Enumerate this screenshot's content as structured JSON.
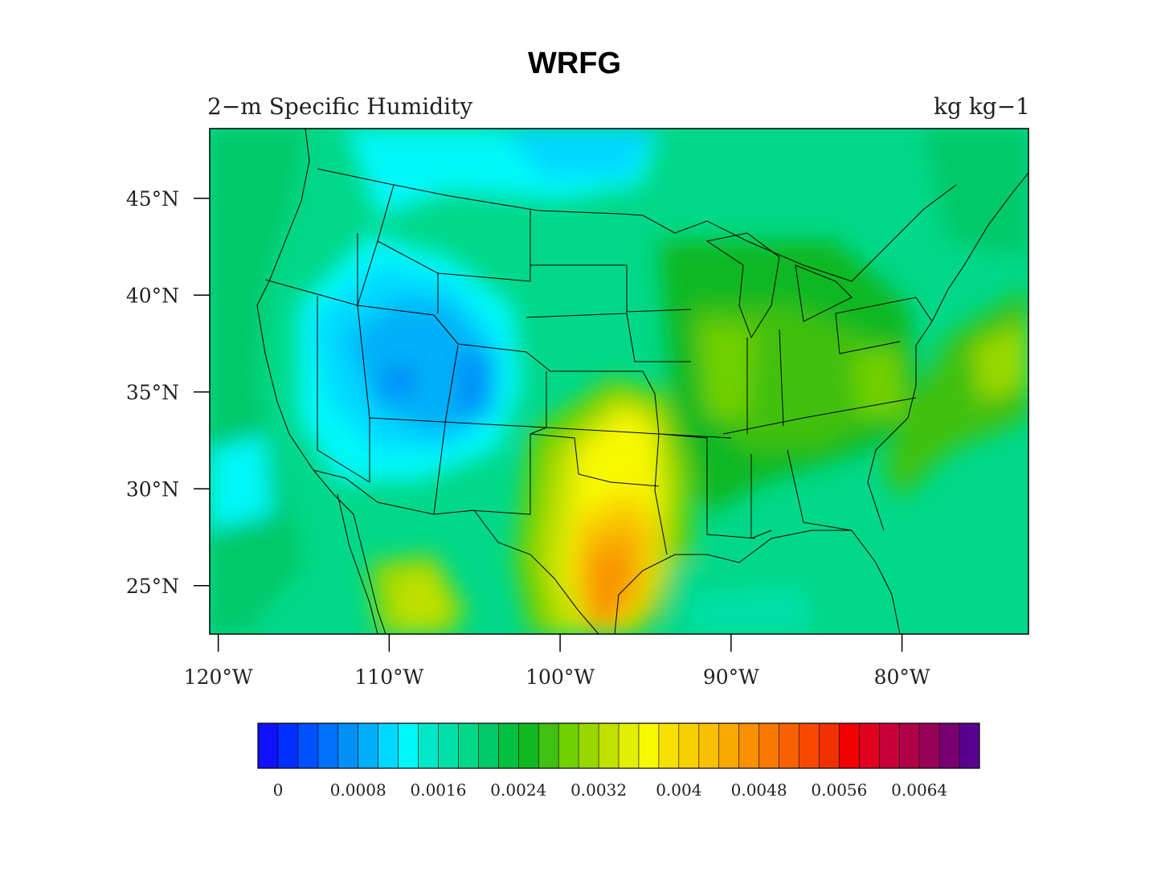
{
  "title": "WRFG",
  "subtitle_left": "2−m Specific Humidity",
  "subtitle_right": "kg kg−1",
  "map": {
    "lon_range": [
      -120.5,
      -72.6
    ],
    "lat_range": [
      22.5,
      48.6
    ],
    "lat_ticks": [
      {
        "value": 45,
        "label": "45°N"
      },
      {
        "value": 40,
        "label": "40°N"
      },
      {
        "value": 35,
        "label": "35°N"
      },
      {
        "value": 30,
        "label": "30°N"
      },
      {
        "value": 25,
        "label": "25°N"
      }
    ],
    "lon_ticks": [
      {
        "value": -120,
        "label": "120°W"
      },
      {
        "value": -110,
        "label": "110°W"
      },
      {
        "value": -100,
        "label": "100°W"
      },
      {
        "value": -90,
        "label": "90°W"
      },
      {
        "value": -80,
        "label": "80°W"
      }
    ]
  },
  "colorbar": {
    "min": 0,
    "max": 0.0072,
    "step": 0.0002,
    "labels": [
      "0",
      "0.0008",
      "0.0016",
      "0.0024",
      "0.0032",
      "0.004",
      "0.0048",
      "0.0056",
      "0.0064"
    ],
    "colors": [
      "#1010ff",
      "#0030ff",
      "#0050ff",
      "#0070ff",
      "#0090f8",
      "#00b0f8",
      "#00d8ff",
      "#00f8f8",
      "#00e8c8",
      "#00e0a8",
      "#00d888",
      "#00c868",
      "#00c040",
      "#10b820",
      "#40c010",
      "#70d000",
      "#98d800",
      "#c0e000",
      "#e0f000",
      "#f8f800",
      "#f8e000",
      "#f8d000",
      "#f8c000",
      "#f8a800",
      "#f89000",
      "#f87800",
      "#f86000",
      "#f84800",
      "#f03000",
      "#f00000",
      "#e00020",
      "#c80038",
      "#b00048",
      "#980058",
      "#780070",
      "#580090"
    ]
  }
}
